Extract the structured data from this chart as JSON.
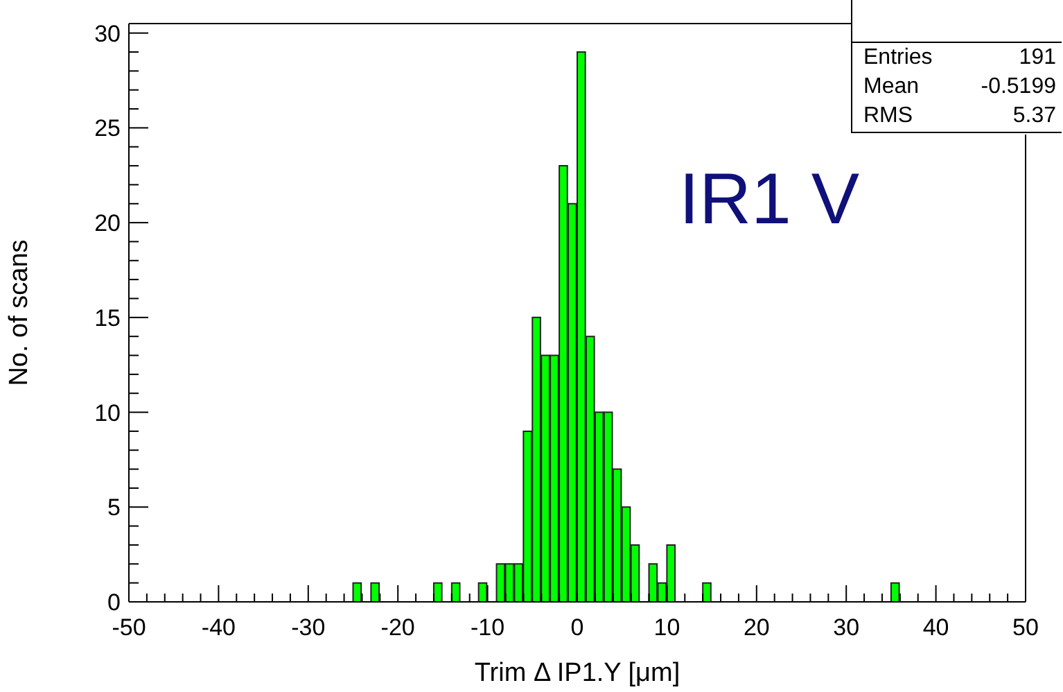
{
  "chart_data": {
    "type": "histogram",
    "xlabel": "Trim Δ IP1.Y [μm]",
    "ylabel": "No. of scans",
    "bins": [
      -50,
      -49,
      -48,
      -47,
      -46,
      -45,
      -44,
      -43,
      -42,
      -41,
      -40,
      -39,
      -38,
      -37,
      -36,
      -35,
      -34,
      -33,
      -32,
      -31,
      -30,
      -29,
      -28,
      -27,
      -26,
      -25,
      -24,
      -23,
      -22,
      -21,
      -20,
      -19,
      -18,
      -17,
      -16,
      -15,
      -14,
      -13,
      -12,
      -11,
      -10,
      -9,
      -8,
      -7,
      -6,
      -5,
      -4,
      -3,
      -2,
      -1,
      0,
      1,
      2,
      3,
      4,
      5,
      6,
      7,
      8,
      9,
      10,
      11,
      12,
      13,
      14,
      15,
      16,
      17,
      18,
      19,
      20,
      21,
      22,
      23,
      24,
      25,
      26,
      27,
      28,
      29,
      30,
      31,
      32,
      33,
      34,
      35,
      36,
      37,
      38,
      39,
      40,
      41,
      42,
      43,
      44,
      45,
      46,
      47,
      48,
      49,
      50
    ],
    "values": [
      0,
      0,
      0,
      0,
      0,
      0,
      0,
      0,
      0,
      0,
      0,
      0,
      0,
      0,
      0,
      0,
      0,
      0,
      0,
      0,
      0,
      0,
      0,
      0,
      0,
      1,
      0,
      1,
      0,
      0,
      0,
      0,
      0,
      0,
      1,
      0,
      1,
      0,
      0,
      1,
      0,
      2,
      2,
      2,
      9,
      15,
      13,
      13,
      23,
      21,
      29,
      14,
      10,
      10,
      7,
      5,
      3,
      0,
      2,
      1,
      3,
      0,
      0,
      0,
      1,
      0,
      0,
      0,
      0,
      0,
      0,
      0,
      0,
      0,
      0,
      0,
      0,
      0,
      0,
      0,
      0,
      0,
      0,
      0,
      0,
      1,
      0,
      0,
      0,
      0,
      0,
      0,
      0,
      0,
      0,
      0,
      0,
      0,
      0,
      0
    ],
    "color": "#00ff00",
    "xlim": [
      -50,
      50
    ],
    "xticks": [
      -50,
      {
        "value": -48,
        "label": null
      },
      {
        "value": -46,
        "label": null
      },
      {
        "value": -44,
        "label": null
      },
      {
        "value": -42,
        "label": null
      },
      -40,
      {
        "value": -38,
        "label": null
      },
      {
        "value": -36,
        "label": null
      },
      {
        "value": -34,
        "label": null
      },
      {
        "value": -32,
        "label": null
      },
      -30,
      {
        "value": -28,
        "label": null
      },
      {
        "value": -26,
        "label": null
      },
      {
        "value": -24,
        "label": null
      },
      {
        "value": -22,
        "label": null
      },
      -20,
      {
        "value": -18,
        "label": null
      },
      {
        "value": -16,
        "label": null
      },
      {
        "value": -14,
        "label": null
      },
      {
        "value": -12,
        "label": null
      },
      -10,
      {
        "value": -8,
        "label": null
      },
      {
        "value": -6,
        "label": null
      },
      {
        "value": -4,
        "label": null
      },
      {
        "value": -2,
        "label": null
      },
      0,
      {
        "value": 2,
        "label": null
      },
      {
        "value": 4,
        "label": null
      },
      {
        "value": 6,
        "label": null
      },
      {
        "value": 8,
        "label": null
      },
      10,
      {
        "value": 12,
        "label": null
      },
      {
        "value": 14,
        "label": null
      },
      {
        "value": 16,
        "label": null
      },
      {
        "value": 18,
        "label": null
      },
      20,
      {
        "value": 22,
        "label": null
      },
      {
        "value": 24,
        "label": null
      },
      {
        "value": 26,
        "label": null
      },
      {
        "value": 28,
        "label": null
      },
      30,
      {
        "value": 32,
        "label": null
      },
      {
        "value": 34,
        "label": null
      },
      {
        "value": 36,
        "label": null
      },
      {
        "value": 38,
        "label": null
      },
      40,
      {
        "value": 42,
        "label": null
      },
      {
        "value": 44,
        "label": null
      },
      {
        "value": 46,
        "label": null
      },
      {
        "value": 48,
        "label": null
      },
      50
    ],
    "ylim": [
      0,
      30.5
    ],
    "yticks": [
      0,
      {
        "value": 1,
        "label": null
      },
      {
        "value": 2,
        "label": null
      },
      {
        "value": 3,
        "label": null
      },
      {
        "value": 4,
        "label": null
      },
      5,
      {
        "value": 6,
        "label": null
      },
      {
        "value": 7,
        "label": null
      },
      {
        "value": 8,
        "label": null
      },
      {
        "value": 9,
        "label": null
      },
      10,
      {
        "value": 11,
        "label": null
      },
      {
        "value": 12,
        "label": null
      },
      {
        "value": 13,
        "label": null
      },
      {
        "value": 14,
        "label": null
      },
      15,
      {
        "value": 16,
        "label": null
      },
      {
        "value": 17,
        "label": null
      },
      {
        "value": 18,
        "label": null
      },
      {
        "value": 19,
        "label": null
      },
      20,
      {
        "value": 21,
        "label": null
      },
      {
        "value": 22,
        "label": null
      },
      {
        "value": 23,
        "label": null
      },
      {
        "value": 24,
        "label": null
      },
      25,
      {
        "value": 26,
        "label": null
      },
      {
        "value": 27,
        "label": null
      },
      {
        "value": 28,
        "label": null
      },
      {
        "value": 29,
        "label": null
      },
      30
    ],
    "annotations": [
      "IR1 V",
      "Entries 191",
      "Mean -0.5199",
      "RMS 5.37"
    ],
    "grid": false,
    "legend": false
  }
}
